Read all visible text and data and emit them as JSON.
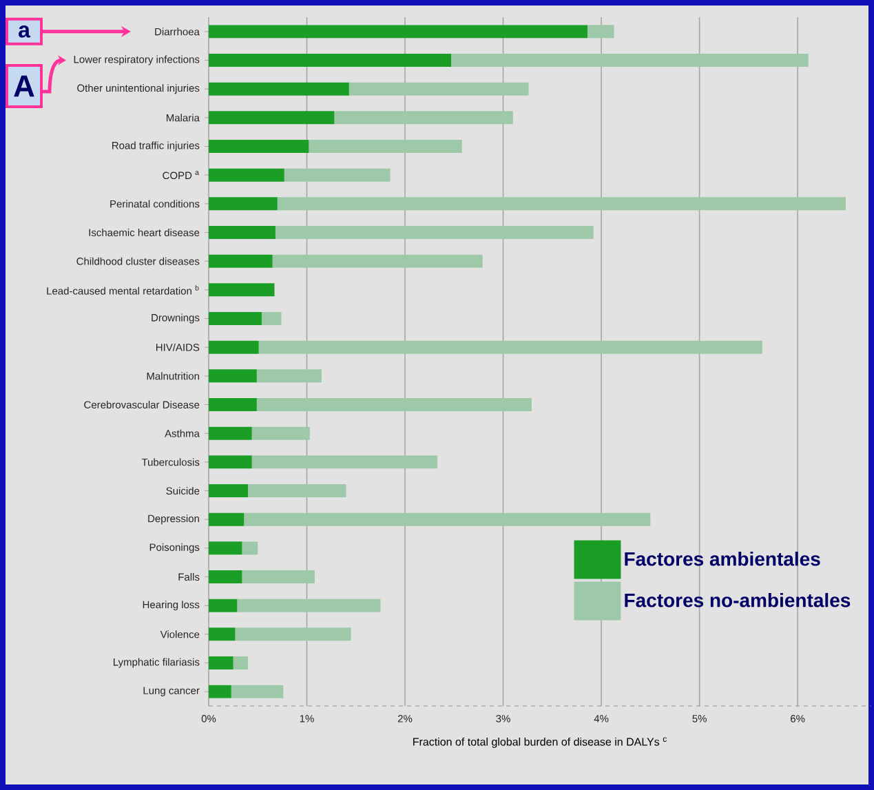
{
  "chart_data": {
    "type": "bar",
    "orientation": "horizontal",
    "stacked": true,
    "categories": [
      "Diarrhoea",
      "Lower respiratory infections",
      "Other unintentional injuries",
      "Malaria",
      "Road traffic injuries",
      "COPD $^{a}$",
      "Perinatal conditions",
      "Ischaemic heart disease",
      "Childhood cluster diseases",
      "Lead-caused mental retardation $^{b}$",
      "Drownings",
      "HIV/AIDS",
      "Malnutrition",
      "Cerebrovascular Disease",
      "Asthma",
      "Tuberculosis",
      "Suicide",
      "Depression",
      "Poisonings",
      "Falls",
      "Hearing loss",
      "Violence",
      "Lymphatic filariasis",
      "Lung cancer"
    ],
    "series": [
      {
        "name": "Factores ambientales",
        "color": "#1a9e26",
        "values": [
          3.86,
          2.47,
          1.43,
          1.28,
          1.02,
          0.77,
          0.7,
          0.68,
          0.65,
          0.67,
          0.54,
          0.51,
          0.49,
          0.49,
          0.44,
          0.44,
          0.4,
          0.36,
          0.34,
          0.34,
          0.29,
          0.27,
          0.25,
          0.23
        ]
      },
      {
        "name": "Factores no-ambientales",
        "color": "#9ec9a8",
        "values": [
          0.27,
          3.64,
          1.83,
          1.82,
          1.56,
          1.08,
          5.79,
          3.24,
          2.14,
          0,
          0.2,
          5.13,
          0.66,
          2.8,
          0.59,
          1.89,
          1.0,
          4.14,
          0.16,
          0.74,
          1.46,
          1.18,
          0.15,
          0.53
        ]
      }
    ],
    "xlim": [
      0,
      6.75
    ],
    "xticks": [
      {
        "value": 0,
        "label": "0%"
      },
      {
        "value": 1,
        "label": "1%"
      },
      {
        "value": 2,
        "label": "2%"
      },
      {
        "value": 3,
        "label": "3%"
      },
      {
        "value": 4,
        "label": "4%"
      },
      {
        "value": 5,
        "label": "5%"
      },
      {
        "value": 6,
        "label": "6%"
      }
    ],
    "xlabel": "Fraction of total global burden of disease in DALYs $^{c}$",
    "grid": "x",
    "legend": "bottom right",
    "annotations": [
      "a",
      "A"
    ]
  }
}
